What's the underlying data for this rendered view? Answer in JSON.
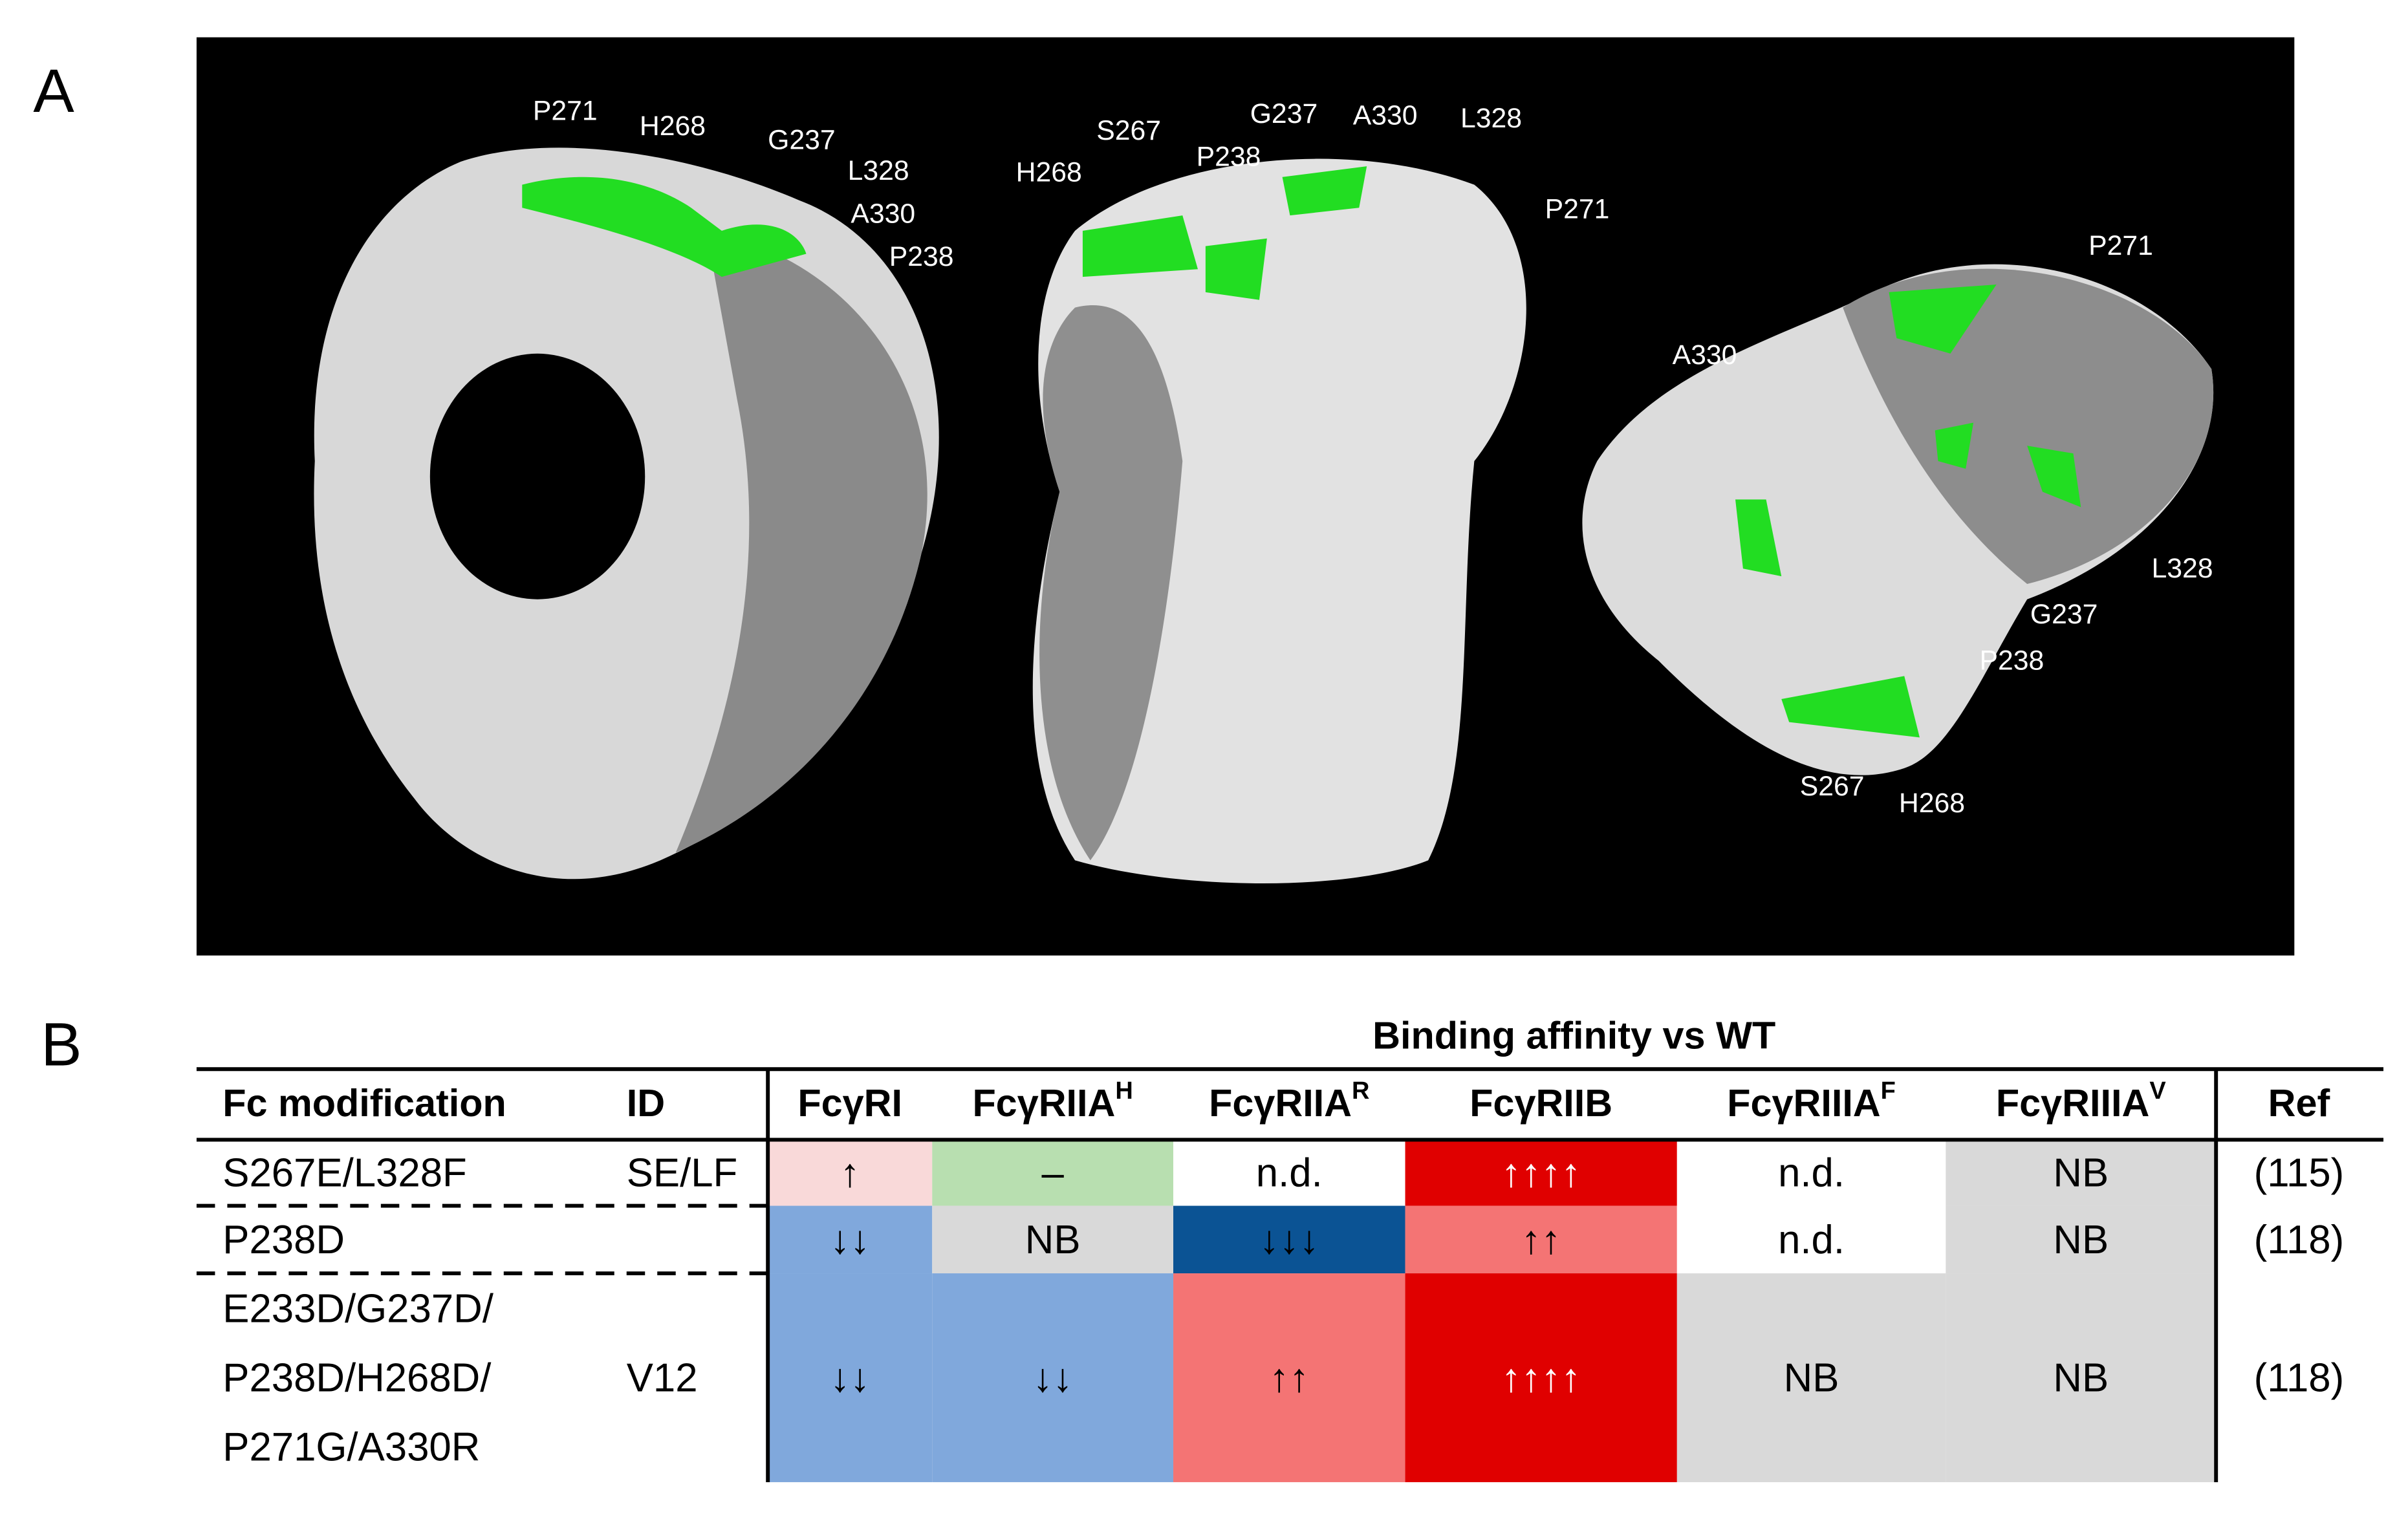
{
  "panel_a": {
    "label": "A",
    "views": [
      {
        "labels": [
          "P271",
          "H268",
          "G237",
          "L328",
          "A330",
          "P238"
        ]
      },
      {
        "labels": [
          "S267",
          "H268",
          "P238",
          "G237",
          "A330",
          "L328",
          "P271"
        ]
      },
      {
        "labels": [
          "P271",
          "A330",
          "L328",
          "G237",
          "P238",
          "S267",
          "H268"
        ]
      }
    ]
  },
  "panel_b": {
    "label": "B",
    "table": {
      "header_group": "Binding affinity vs WT",
      "columns": [
        {
          "text": "Fc modification"
        },
        {
          "text": "ID"
        },
        {
          "text": "FcγRI"
        },
        {
          "text": "FcγRIIA",
          "sup": "H"
        },
        {
          "text": "FcγRIIA",
          "sup": "R"
        },
        {
          "text": "FcγRIIB"
        },
        {
          "text": "FcγRIIIA",
          "sup": "F"
        },
        {
          "text": "FcγRIIIA",
          "sup": "V"
        },
        {
          "text": "Ref"
        }
      ],
      "rows": [
        {
          "modification": [
            "S267E/L328F"
          ],
          "id": "SE/LF",
          "cells": [
            {
              "text": "↑",
              "color": "#f9d9d9",
              "text_color": "#000000"
            },
            {
              "text": "–",
              "color": "#b8dfb0",
              "text_color": "#000000"
            },
            {
              "text": "n.d.",
              "color": "#ffffff",
              "text_color": "#000000"
            },
            {
              "text": "↑↑↑↑",
              "color": "#e00000",
              "text_color": "#ffffff"
            },
            {
              "text": "n.d.",
              "color": "#ffffff",
              "text_color": "#000000"
            },
            {
              "text": "NB",
              "color": "#d9d9d9",
              "text_color": "#000000"
            }
          ],
          "ref": "(115)"
        },
        {
          "modification": [
            "P238D"
          ],
          "cells": [
            {
              "text": "↓↓",
              "color": "#80a8dc",
              "text_color": "#000000"
            },
            {
              "text": "NB",
              "color": "#d9d9d9",
              "text_color": "#000000"
            },
            {
              "text": "↓↓↓",
              "color": "#0b5394",
              "text_color": "#000000"
            },
            {
              "text": "↑↑",
              "color": "#f47474",
              "text_color": "#000000"
            },
            {
              "text": "n.d.",
              "color": "#ffffff",
              "text_color": "#000000"
            },
            {
              "text": "NB",
              "color": "#d9d9d9",
              "text_color": "#000000"
            }
          ],
          "ref": "(118)"
        },
        {
          "modification": [
            "E233D/G237D/",
            "P238D/H268D/",
            "P271G/A330R"
          ],
          "id": "V12",
          "cells": [
            {
              "text": "↓↓",
              "color": "#80a8dc",
              "text_color": "#000000"
            },
            {
              "text": "↓↓",
              "color": "#80a8dc",
              "text_color": "#000000"
            },
            {
              "text": "↑↑",
              "color": "#f47474",
              "text_color": "#000000"
            },
            {
              "text": "↑↑↑↑",
              "color": "#e00000",
              "text_color": "#ffffff"
            },
            {
              "text": "NB",
              "color": "#d9d9d9",
              "text_color": "#000000"
            },
            {
              "text": "NB",
              "color": "#d9d9d9",
              "text_color": "#000000"
            }
          ],
          "ref": "(118)"
        }
      ]
    }
  }
}
